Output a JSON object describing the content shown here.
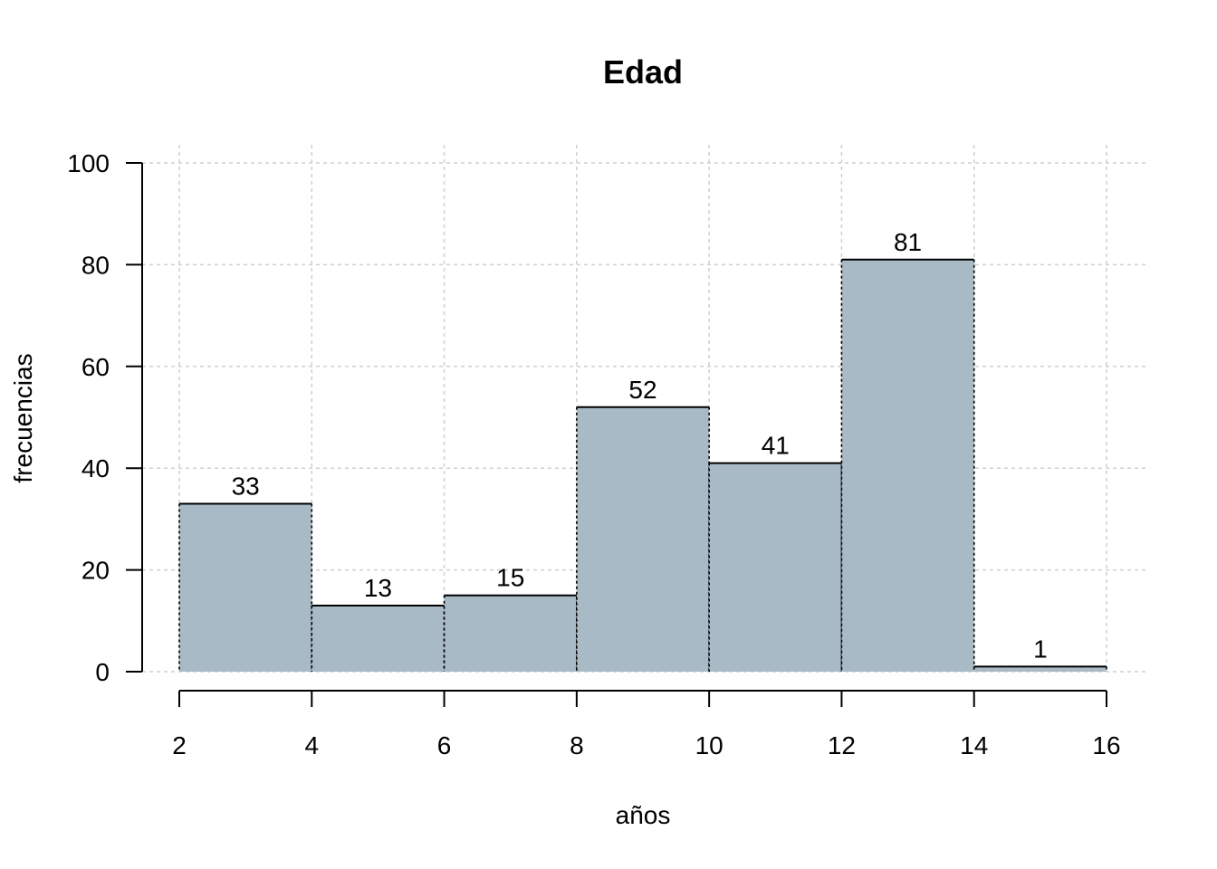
{
  "chart_data": {
    "type": "bar",
    "title": "Edad",
    "xlabel": "años",
    "ylabel": "frecuencias",
    "bins": [
      {
        "from": 2,
        "to": 4,
        "value": 33,
        "label": "33"
      },
      {
        "from": 4,
        "to": 6,
        "value": 13,
        "label": "13"
      },
      {
        "from": 6,
        "to": 8,
        "value": 15,
        "label": "15"
      },
      {
        "from": 8,
        "to": 10,
        "value": 52,
        "label": "52"
      },
      {
        "from": 10,
        "to": 12,
        "value": 41,
        "label": "41"
      },
      {
        "from": 12,
        "to": 14,
        "value": 81,
        "label": "81"
      },
      {
        "from": 14,
        "to": 16,
        "value": 1,
        "label": "1"
      }
    ],
    "xlim": [
      2,
      16
    ],
    "ylim": [
      0,
      100
    ],
    "x_ticks": [
      "2",
      "4",
      "6",
      "8",
      "10",
      "12",
      "14",
      "16"
    ],
    "y_ticks": [
      "0",
      "20",
      "40",
      "60",
      "80",
      "100"
    ],
    "grid": true,
    "bar_color": "#a9bac7",
    "grid_color": "#cfcfcf"
  }
}
